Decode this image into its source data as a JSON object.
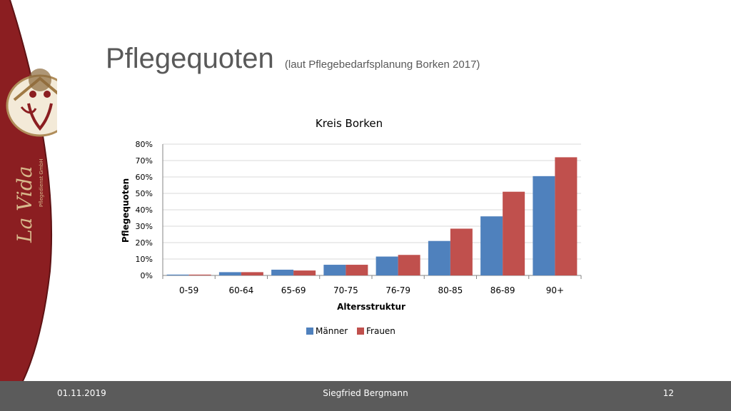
{
  "slide": {
    "title": "Pflegequoten",
    "subtitle": "(laut Pflegebedarfsplanung Borken 2017)",
    "logo_text": "La Vida",
    "logo_subtext": "Pflegedienst GmbH"
  },
  "footer": {
    "date": "01.11.2019",
    "author": "Siegfried Bergmann",
    "page": "12"
  },
  "colors": {
    "sidebar": "#8b1e21",
    "maenner": "#4f81bd",
    "frauen": "#c0504d"
  },
  "chart_data": {
    "type": "bar",
    "title": "Kreis Borken",
    "xlabel": "Altersstruktur",
    "ylabel": "Pflegequoten",
    "categories": [
      "0-59",
      "60-64",
      "65-69",
      "70-75",
      "76-79",
      "80-85",
      "86-89",
      "90+"
    ],
    "series": [
      {
        "name": "Männer",
        "values": [
          0.5,
          2,
          3.5,
          6.5,
          11.5,
          21,
          36,
          60.5
        ]
      },
      {
        "name": "Frauen",
        "values": [
          0.5,
          2,
          3,
          6.5,
          12.5,
          28.5,
          51,
          72
        ]
      }
    ],
    "ylim": [
      0,
      80
    ],
    "yticks": [
      0,
      10,
      20,
      30,
      40,
      50,
      60,
      70,
      80
    ],
    "ytick_labels": [
      "0%",
      "10%",
      "20%",
      "30%",
      "40%",
      "50%",
      "60%",
      "70%",
      "80%"
    ],
    "grid": true,
    "legend": "bottom"
  }
}
